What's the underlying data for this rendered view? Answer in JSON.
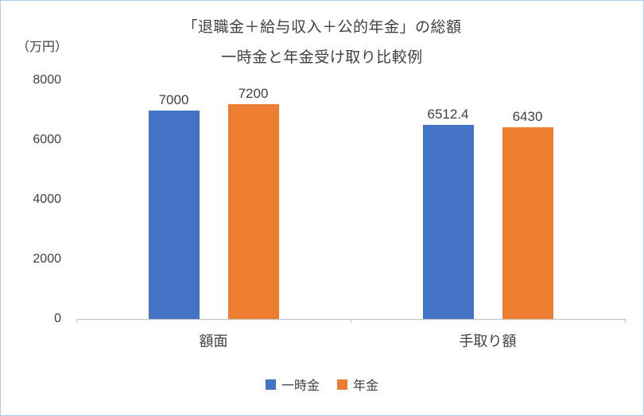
{
  "chart_data": {
    "type": "bar",
    "title": "「退職金＋給与収入＋公的年金」の総額",
    "subtitle": "一時金と年金受け取り比較例",
    "unit_label": "（万円）",
    "categories": [
      "額面",
      "手取り額"
    ],
    "series": [
      {
        "name": "一時金",
        "color": "#4472C4",
        "values": [
          7000,
          6512.4
        ],
        "labels": [
          "7000",
          "6512.4"
        ]
      },
      {
        "name": "年金",
        "color": "#ED7D31",
        "values": [
          7200,
          6430
        ],
        "labels": [
          "7200",
          "6430"
        ]
      }
    ],
    "ylim": [
      0,
      8000
    ],
    "yticks": [
      0,
      2000,
      4000,
      6000,
      8000
    ],
    "grid": false,
    "legend_position": "bottom",
    "axis_color": "#BFBFBF",
    "text_color": "#404040"
  }
}
